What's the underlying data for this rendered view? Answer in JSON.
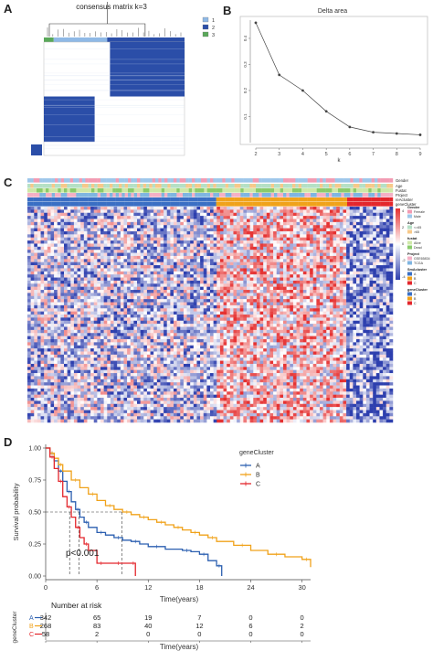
{
  "panels": {
    "a": {
      "letter": "A"
    },
    "b": {
      "letter": "B"
    },
    "c": {
      "letter": "C"
    },
    "d": {
      "letter": "D"
    }
  },
  "colors": {
    "blue": "#2b4ea8",
    "light_blue": "#8fb9e6",
    "green": "#5aa85a",
    "orange": "#f0a21a",
    "red": "#e3262c",
    "heat_low": "#2d3fae",
    "heat_high": "#e53030"
  },
  "chart_data": [
    {
      "type": "heatmap",
      "title": "consensus matrix k=3",
      "legend": {
        "labels": [
          "1",
          "2",
          "3"
        ],
        "colors": [
          "#8fb9e6",
          "#2b4ea8",
          "#5aa85a"
        ],
        "placement": "right"
      },
      "blocks": [
        {
          "cluster": "2",
          "share": 0.53
        },
        {
          "cluster": "1",
          "share": 0.38
        },
        {
          "cluster": "3",
          "share": 0.09
        }
      ]
    },
    {
      "type": "line",
      "title": "Delta area",
      "xlabel": "k",
      "ylabel": "",
      "x": [
        2,
        3,
        4,
        5,
        6,
        7,
        8,
        9
      ],
      "y": [
        0.46,
        0.26,
        0.2,
        0.12,
        0.06,
        0.04,
        0.035,
        0.03
      ],
      "xlim": [
        2,
        9
      ],
      "ylim": [
        0,
        0.47
      ],
      "yticks": [
        "0.1",
        "0.2",
        "0.3",
        "0.4"
      ],
      "grid": false
    },
    {
      "type": "heatmap",
      "annotation_rows": [
        "Gender",
        "Age",
        "Fustat",
        "Project",
        "reAcluster",
        "geneCluster"
      ],
      "legend": {
        "groups": [
          {
            "title": "Gender",
            "items": [
              "Female",
              "Male"
            ]
          },
          {
            "title": "Age",
            "items": [
              "<=65",
              ">65"
            ]
          },
          {
            "title": "fustat",
            "items": [
              "Alive",
              "Dead"
            ]
          },
          {
            "title": "Project",
            "items": [
              "GSE65834",
              "TCGA"
            ]
          },
          {
            "title": "SmAcluster",
            "items": [
              "A",
              "B",
              "C"
            ]
          },
          {
            "title": "geneCluster",
            "items": [
              "A",
              "B",
              "C"
            ]
          }
        ],
        "scale": [
          "4",
          "2",
          "0",
          "-2",
          "-4"
        ]
      },
      "column_groups": [
        {
          "cluster": "A",
          "share": 0.51,
          "pattern": "blue-leaning"
        },
        {
          "cluster": "B",
          "share": 0.36,
          "pattern": "red-leaning"
        },
        {
          "cluster": "C",
          "share": 0.13,
          "pattern": "blue"
        }
      ]
    },
    {
      "type": "line",
      "subtype": "kaplan-meier",
      "xlabel": "Time(years)",
      "ylabel": "Survival probability",
      "xlim": [
        0,
        31
      ],
      "ylim": [
        0,
        1
      ],
      "xticks": [
        0,
        6,
        12,
        18,
        24,
        30
      ],
      "yticks": [
        "0.00",
        "0.25",
        "0.50",
        "0.75",
        "1.00"
      ],
      "pvalue": "p<0.001",
      "legend_title": "geneCluster",
      "median_line": 0.5,
      "median_times": {
        "A": 3.9,
        "B": 8.9,
        "C": 2.8
      },
      "series": [
        {
          "name": "A",
          "color": "#2b5fb0",
          "x": [
            0,
            0.5,
            1,
            1.5,
            2,
            2.5,
            3,
            3.5,
            4,
            4.5,
            5,
            6,
            7,
            8,
            9,
            10,
            11,
            12,
            14,
            16,
            17,
            18,
            19,
            20,
            20.6
          ],
          "y": [
            1,
            0.96,
            0.9,
            0.82,
            0.74,
            0.66,
            0.58,
            0.52,
            0.46,
            0.42,
            0.38,
            0.34,
            0.32,
            0.3,
            0.28,
            0.27,
            0.25,
            0.23,
            0.21,
            0.2,
            0.19,
            0.17,
            0.12,
            0.08,
            0
          ]
        },
        {
          "name": "B",
          "color": "#f0a21a",
          "x": [
            0,
            0.5,
            1,
            1.5,
            2,
            3,
            4,
            5,
            6,
            7,
            8,
            9,
            10,
            11,
            12,
            13,
            14,
            15,
            16,
            17,
            18,
            19,
            20,
            22,
            24,
            26,
            28,
            30,
            31
          ],
          "y": [
            1,
            0.96,
            0.92,
            0.87,
            0.82,
            0.75,
            0.69,
            0.64,
            0.59,
            0.55,
            0.52,
            0.5,
            0.48,
            0.46,
            0.44,
            0.42,
            0.4,
            0.38,
            0.36,
            0.34,
            0.32,
            0.3,
            0.27,
            0.24,
            0.2,
            0.17,
            0.15,
            0.13,
            0.07
          ]
        },
        {
          "name": "C",
          "color": "#e3262c",
          "x": [
            0,
            0.5,
            1,
            1.5,
            2,
            2.5,
            3,
            3.5,
            4,
            4.5,
            5,
            6,
            7,
            8,
            9,
            10,
            10.5
          ],
          "y": [
            1,
            0.93,
            0.84,
            0.74,
            0.62,
            0.54,
            0.46,
            0.38,
            0.3,
            0.25,
            0.2,
            0.1,
            0.1,
            0.1,
            0.1,
            0.1,
            0
          ]
        }
      ],
      "risk_table": {
        "title": "Number at risk",
        "group_label": "geneCluster",
        "times": [
          0,
          6,
          12,
          18,
          24,
          30
        ],
        "rows": [
          {
            "name": "A",
            "counts": [
              342,
              65,
              19,
              7,
              0,
              0
            ]
          },
          {
            "name": "B",
            "counts": [
              268,
              83,
              40,
              12,
              6,
              2
            ]
          },
          {
            "name": "C",
            "counts": [
              58,
              2,
              0,
              0,
              0,
              0
            ]
          }
        ],
        "xlabel": "Time(years)"
      }
    }
  ]
}
